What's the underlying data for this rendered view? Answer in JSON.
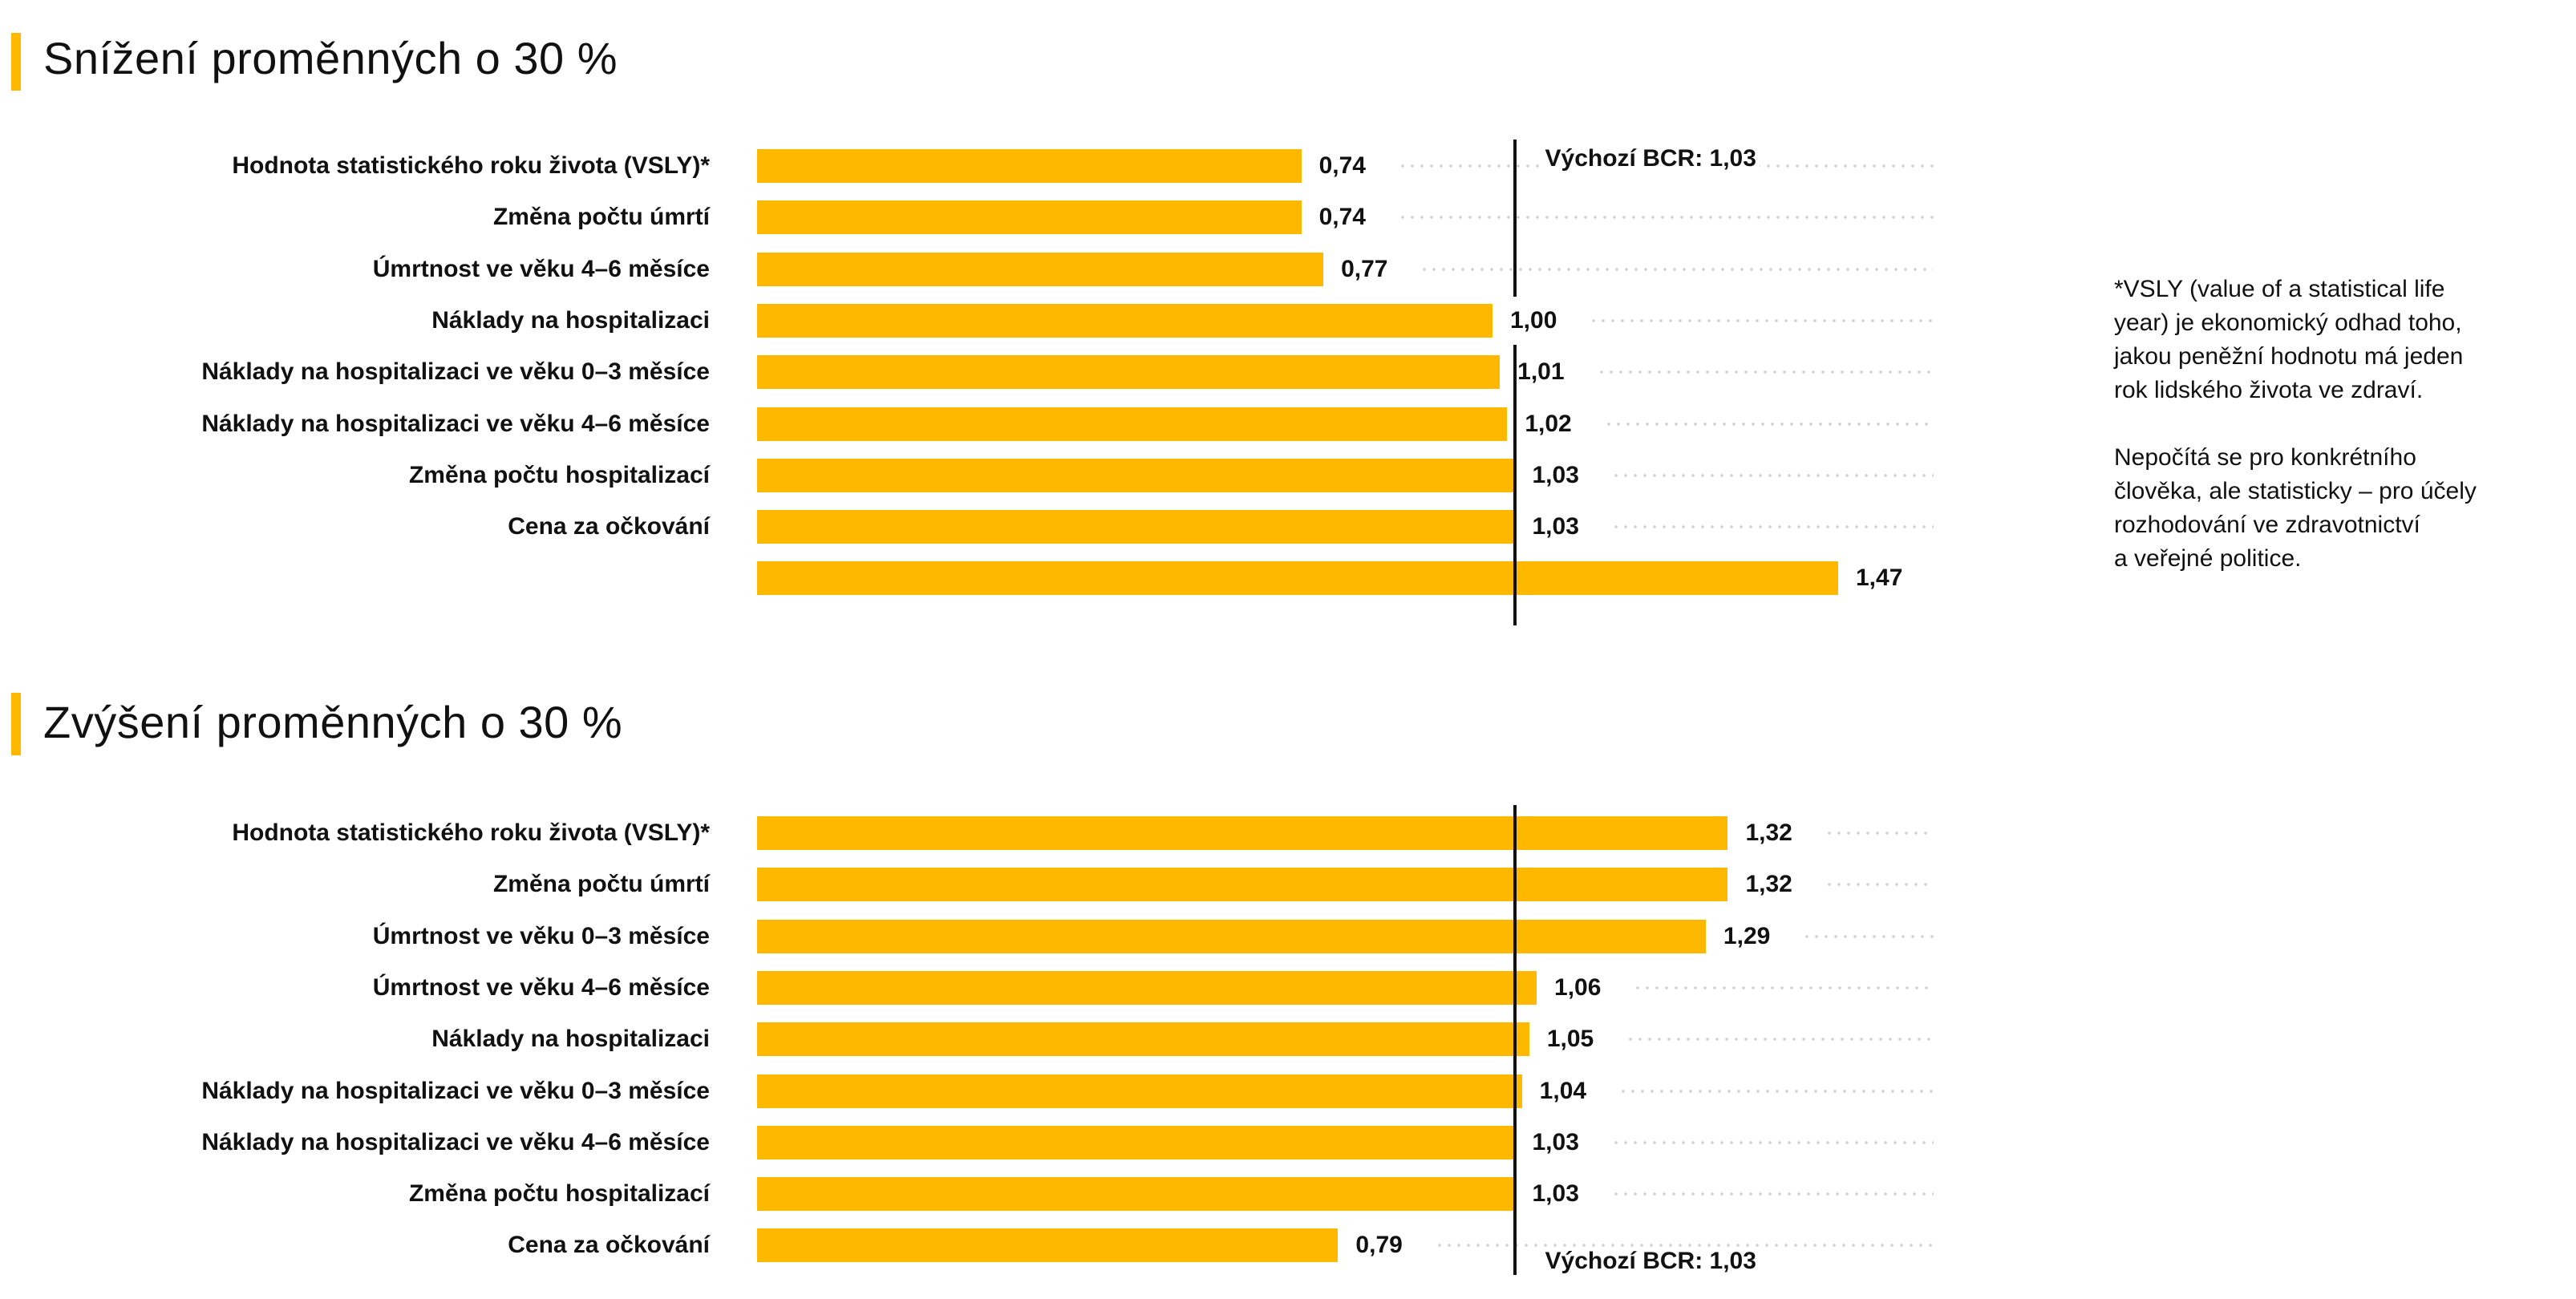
{
  "chart_data": [
    {
      "type": "bar",
      "orientation": "horizontal",
      "title": "Snížení proměnných o 30 %",
      "baseline": {
        "label": "Výchozí BCR: 1,03",
        "value": 1.03
      },
      "categories": [
        "Hodnota statistického roku života (VSLY)*",
        "Změna počtu úmrtí",
        "Úmrtnost ve věku 4–6 měsíce",
        "Náklady na hospitalizaci",
        "Náklady na hospitalizaci ve věku 0–3 měsíce",
        "Náklady na hospitalizaci ve věku 4–6 měsíce",
        "Změna počtu hospitalizací",
        "Cena za očkování",
        ""
      ],
      "values": [
        0.74,
        0.74,
        0.77,
        1.0,
        1.01,
        1.02,
        1.03,
        1.03,
        1.47
      ],
      "value_labels": [
        "0,74",
        "0,74",
        "0,77",
        "1,00",
        "1,01",
        "1,02",
        "1,03",
        "1,03",
        "1,47"
      ],
      "xlim": [
        0,
        1.6
      ],
      "color": "#FFB800"
    },
    {
      "type": "bar",
      "orientation": "horizontal",
      "title": "Zvýšení proměnných o 30 %",
      "baseline": {
        "label": "Výchozí BCR: 1,03",
        "value": 1.03
      },
      "categories": [
        "Hodnota statistického roku života (VSLY)*",
        "Změna počtu úmrtí",
        "Úmrtnost ve věku 0–3 měsíce",
        "Úmrtnost ve věku 4–6 měsíce",
        "Náklady na hospitalizaci",
        "Náklady na hospitalizaci ve věku 0–3 měsíce",
        "Náklady na hospitalizaci ve věku 4–6 měsíce",
        "Změna počtu hospitalizací",
        "Cena za očkování"
      ],
      "values": [
        1.32,
        1.32,
        1.29,
        1.06,
        1.05,
        1.04,
        1.03,
        1.03,
        0.79
      ],
      "value_labels": [
        "1,32",
        "1,32",
        "1,29",
        "1,06",
        "1,05",
        "1,04",
        "1,03",
        "1,03",
        "0,79"
      ],
      "xlim": [
        0,
        1.6
      ],
      "color": "#FFB800"
    }
  ],
  "footnote": {
    "paragraphs": [
      "*VSLY (value of a statistical life\n year) je ekonomický odhad toho,\n jakou peněžní hodnotu má jeden\n rok lidského života ve zdraví.",
      "Nepočítá se pro konkrétního\nčlověka, ale statisticky – pro účely\nrozhodování ve zdravotnictví\na veřejné politice."
    ]
  }
}
